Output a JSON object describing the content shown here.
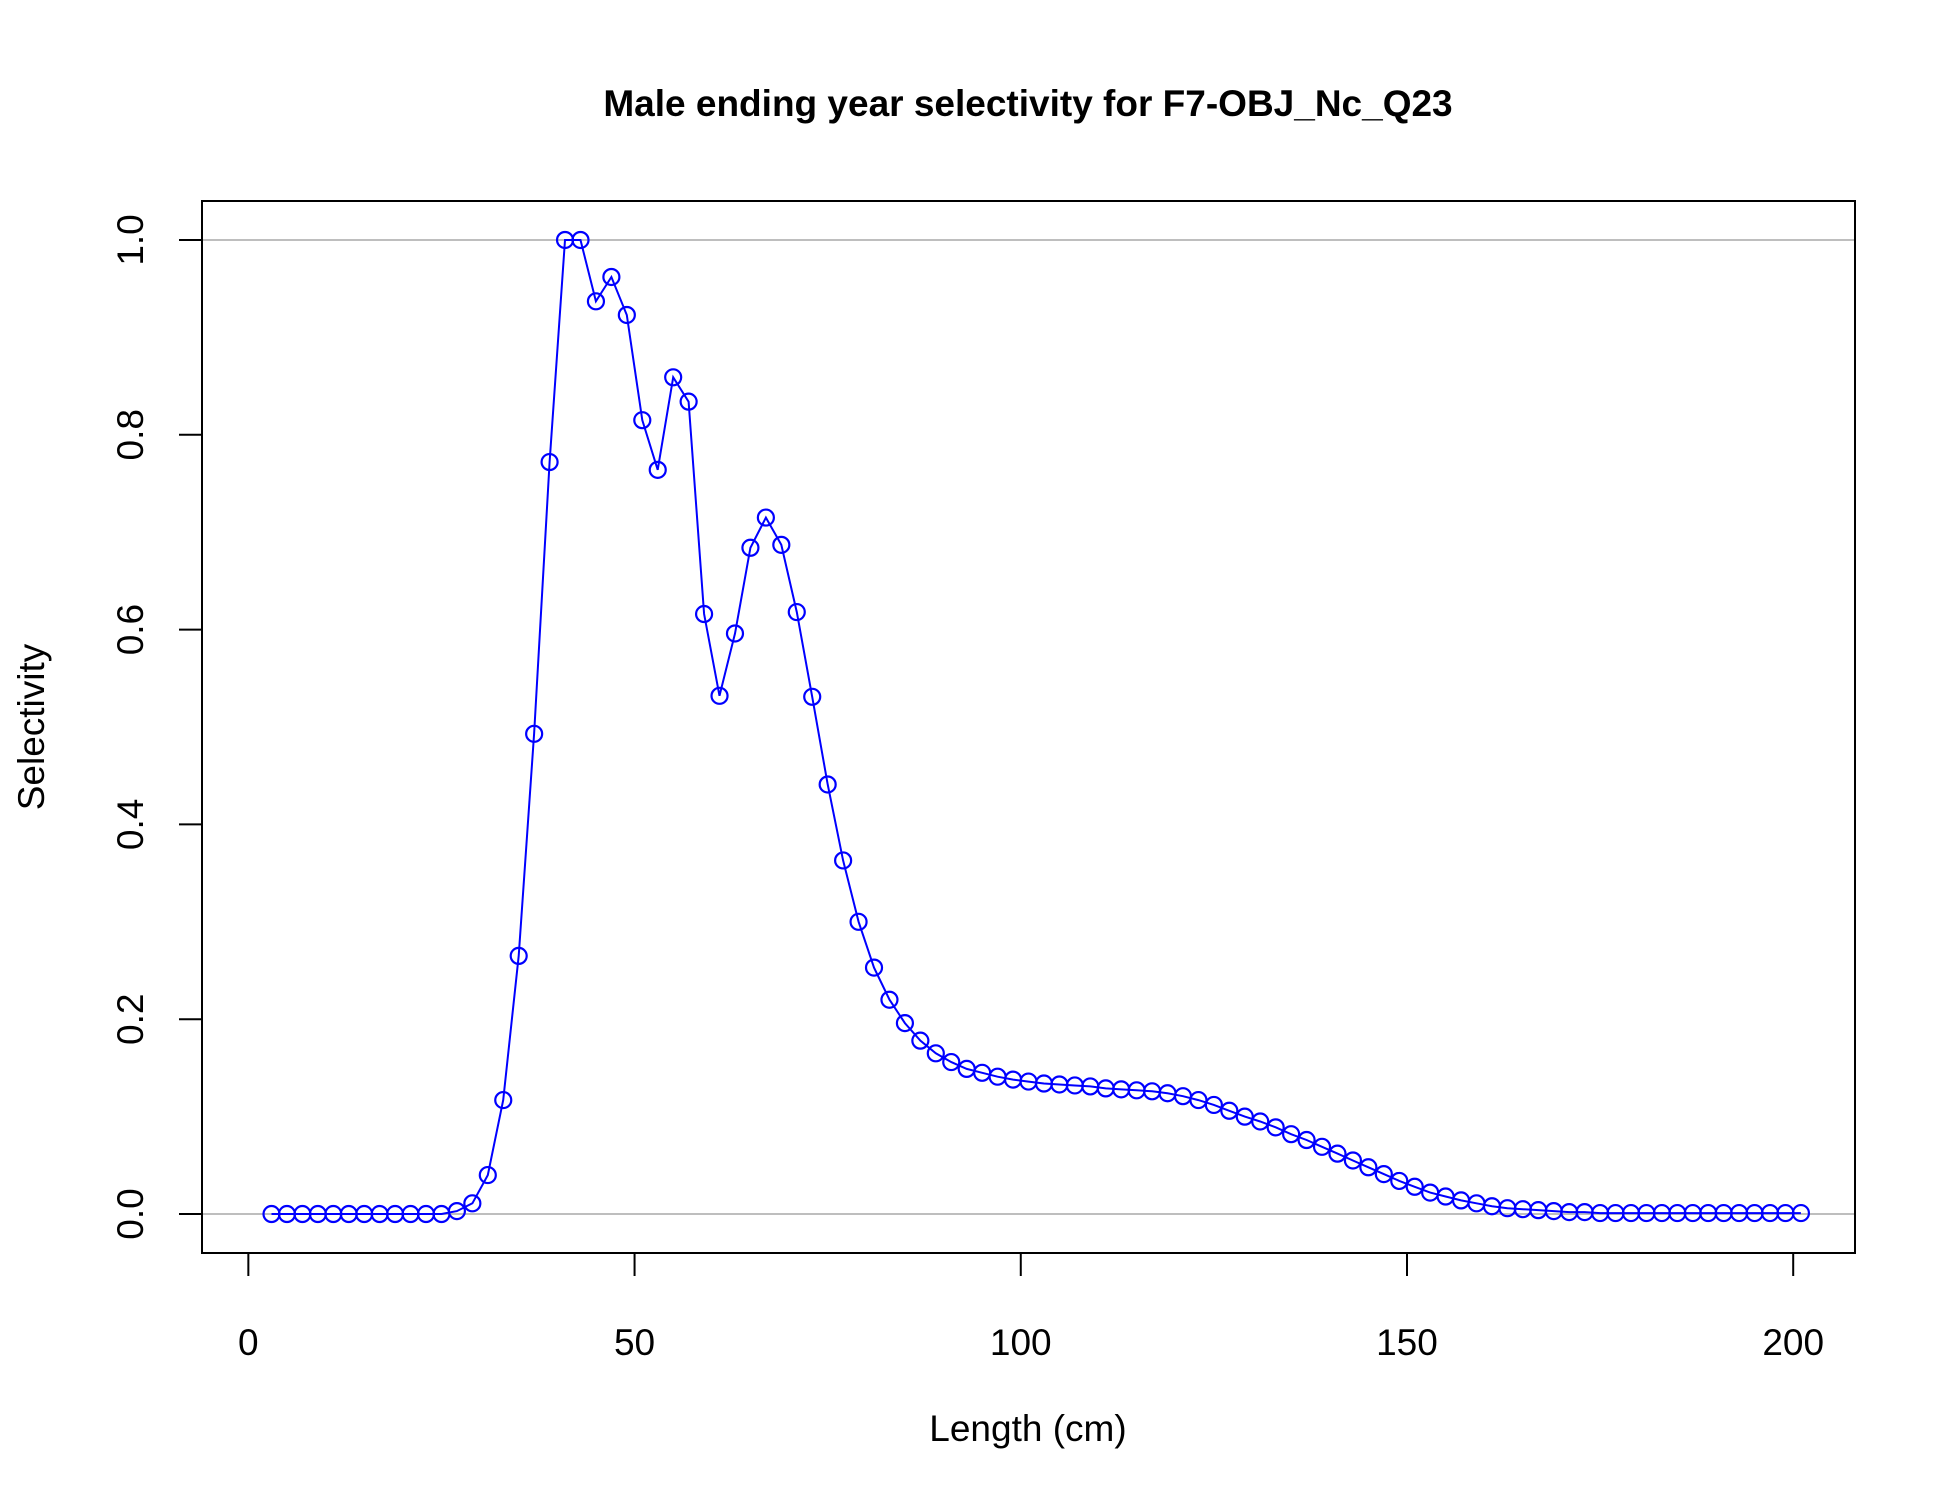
{
  "chart_data": {
    "type": "line",
    "title": "Male ending year selectivity for F7-OBJ_Nc_Q23",
    "xlabel": "Length (cm)",
    "ylabel": "Selectivity",
    "xlim": [
      -6,
      208
    ],
    "ylim": [
      -0.04,
      1.04
    ],
    "x_ticks": [
      0,
      50,
      100,
      150,
      200
    ],
    "y_ticks": [
      0.0,
      0.2,
      0.4,
      0.6,
      0.8,
      1.0
    ],
    "x_tick_labels": [
      "0",
      "50",
      "100",
      "150",
      "200"
    ],
    "y_tick_labels": [
      "0.0",
      "0.2",
      "0.4",
      "0.6",
      "0.8",
      "1.0"
    ],
    "reference_lines_y": [
      0,
      1
    ],
    "line_color": "#0000ff",
    "reference_line_color": "#bebebe",
    "marker": "open-circle",
    "grid": false,
    "legend": "none",
    "series": [
      {
        "x": [
          3,
          5,
          7,
          9,
          11,
          13,
          15,
          17,
          19,
          21,
          23,
          25,
          27,
          29,
          31,
          33,
          35,
          37,
          39,
          41,
          43,
          45,
          47,
          49,
          51,
          53,
          55,
          57,
          59,
          61,
          63,
          65,
          67,
          69,
          71,
          73,
          75,
          77,
          79,
          81,
          83,
          85,
          87,
          89,
          91,
          93,
          95,
          97,
          99,
          101,
          103,
          105,
          107,
          109,
          111,
          113,
          115,
          117,
          119,
          121,
          123,
          125,
          127,
          129,
          131,
          133,
          135,
          137,
          139,
          141,
          143,
          145,
          147,
          149,
          151,
          153,
          155,
          157,
          159,
          161,
          163,
          165,
          167,
          169,
          171,
          173,
          175,
          177,
          179,
          181,
          183,
          185,
          187,
          189,
          191,
          193,
          195,
          197,
          199,
          201
        ],
        "y": [
          0,
          0,
          0,
          0,
          0,
          0,
          0,
          0,
          0,
          0,
          0,
          0,
          0.003,
          0.011,
          0.04,
          0.117,
          0.265,
          0.493,
          0.772,
          1.0,
          1.0,
          0.937,
          0.962,
          0.923,
          0.815,
          0.764,
          0.859,
          0.834,
          0.616,
          0.532,
          0.596,
          0.684,
          0.715,
          0.687,
          0.618,
          0.531,
          0.441,
          0.363,
          0.3,
          0.253,
          0.22,
          0.196,
          0.178,
          0.165,
          0.156,
          0.149,
          0.145,
          0.141,
          0.138,
          0.136,
          0.134,
          0.133,
          0.132,
          0.131,
          0.129,
          0.128,
          0.127,
          0.126,
          0.124,
          0.121,
          0.117,
          0.112,
          0.106,
          0.1,
          0.095,
          0.089,
          0.082,
          0.076,
          0.069,
          0.062,
          0.055,
          0.048,
          0.041,
          0.034,
          0.028,
          0.022,
          0.018,
          0.014,
          0.011,
          0.008,
          0.006,
          0.005,
          0.004,
          0.003,
          0.002,
          0.002,
          0.001,
          0.001,
          0.001,
          0.001,
          0.001,
          0.001,
          0.001,
          0.001,
          0.001,
          0.001,
          0.001,
          0.001,
          0.001,
          0.001
        ]
      }
    ]
  }
}
